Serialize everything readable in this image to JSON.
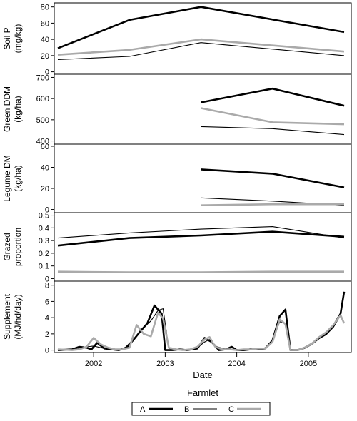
{
  "chart_data": {
    "type": "line",
    "xlabel": "Date",
    "x_ticks": [
      "2002",
      "2003",
      "2004",
      "2005"
    ],
    "x_range": [
      2001.45,
      2005.6
    ],
    "legend": {
      "title": "Farmlet",
      "entries": [
        "A",
        "B",
        "C"
      ],
      "colors": [
        "#000000",
        "#000000",
        "#aaaaaa"
      ],
      "line_widths": [
        "thick",
        "thin",
        "thick"
      ]
    },
    "panels": [
      {
        "ylabel_lines": [
          "Soil P",
          "(mg/kg)"
        ],
        "ylim": [
          -3,
          85
        ],
        "yticks": [
          "0",
          "20",
          "40",
          "60",
          "80"
        ],
        "series": [
          {
            "name": "A",
            "x": [
              2001.5,
              2002.5,
              2003.5,
              2005.5
            ],
            "y": [
              29,
              64,
              80,
              49
            ]
          },
          {
            "name": "B",
            "x": [
              2001.5,
              2002.5,
              2003.5,
              2005.5
            ],
            "y": [
              15,
              19,
              36,
              20
            ]
          },
          {
            "name": "C",
            "x": [
              2001.5,
              2002.5,
              2003.5,
              2005.5
            ],
            "y": [
              21,
              27,
              40,
              25
            ]
          }
        ]
      },
      {
        "ylabel_lines": [
          "Green DDM",
          "(kg/ha)"
        ],
        "ylim": [
          385,
          715
        ],
        "yticks": [
          "400",
          "500",
          "600",
          "700"
        ],
        "series": [
          {
            "name": "A",
            "x": [
              2003.5,
              2004.5,
              2005.5
            ],
            "y": [
              582,
              647,
              566
            ]
          },
          {
            "name": "B",
            "x": [
              2003.5,
              2004.5,
              2005.5
            ],
            "y": [
              468,
              458,
              430
            ]
          },
          {
            "name": "C",
            "x": [
              2003.5,
              2004.5,
              2005.5
            ],
            "y": [
              555,
              488,
              479
            ]
          }
        ]
      },
      {
        "ylabel_lines": [
          "Legume DM",
          "(kg/ha)"
        ],
        "ylim": [
          -3,
          62
        ],
        "yticks": [
          "0",
          "20",
          "40",
          "60"
        ],
        "series": [
          {
            "name": "A",
            "x": [
              2003.5,
              2004.5,
              2005.5
            ],
            "y": [
              38,
              34,
              21
            ]
          },
          {
            "name": "B",
            "x": [
              2003.5,
              2004.5,
              2005.5
            ],
            "y": [
              11,
              8,
              4
            ]
          },
          {
            "name": "C",
            "x": [
              2003.5,
              2004.5,
              2005.5
            ],
            "y": [
              4,
              5,
              5
            ]
          }
        ]
      },
      {
        "ylabel_lines": [
          "Grazed",
          "proportion"
        ],
        "ylim": [
          -0.02,
          0.52
        ],
        "yticks": [
          "0",
          "0.1",
          "0.2",
          "0.3",
          "0.4",
          "0.5"
        ],
        "series": [
          {
            "name": "A",
            "x": [
              2001.5,
              2002.5,
              2003.5,
              2004.5,
              2005.5
            ],
            "y": [
              0.26,
              0.32,
              0.34,
              0.37,
              0.33
            ]
          },
          {
            "name": "B",
            "x": [
              2001.5,
              2002.5,
              2003.5,
              2004.5,
              2005.5
            ],
            "y": [
              0.32,
              0.36,
              0.39,
              0.41,
              0.32
            ]
          },
          {
            "name": "C",
            "x": [
              2001.5,
              2002.5,
              2003.5,
              2004.5,
              2005.5
            ],
            "y": [
              0.055,
              0.05,
              0.05,
              0.055,
              0.055
            ]
          }
        ]
      },
      {
        "ylabel_lines": [
          "Supplement",
          "(MJ/hd/day)"
        ],
        "ylim": [
          -0.3,
          8.5
        ],
        "yticks": [
          "0",
          "2",
          "4",
          "6",
          "8"
        ],
        "series": [
          {
            "name": "A",
            "x": [
              2001.5,
              2001.7,
              2001.8,
              2001.9,
              2001.97,
              2002.05,
              2002.15,
              2002.25,
              2002.35,
              2002.45,
              2002.55,
              2002.65,
              2002.75,
              2002.85,
              2002.95,
              2003.0,
              2003.1,
              2003.2,
              2003.3,
              2003.45,
              2003.55,
              2003.65,
              2003.75,
              2003.85,
              2003.93,
              2004.0,
              2004.1,
              2004.2,
              2004.3,
              2004.4,
              2004.5,
              2004.6,
              2004.68,
              2004.75,
              2004.85,
              2004.95,
              2005.05,
              2005.15,
              2005.25,
              2005.35,
              2005.45,
              2005.5
            ],
            "y": [
              0.0,
              0.1,
              0.4,
              0.3,
              0.1,
              0.9,
              0.2,
              0.1,
              0.0,
              0.3,
              1.2,
              2.3,
              3.3,
              5.5,
              4.5,
              0.0,
              0.0,
              0.1,
              0.0,
              0.2,
              1.5,
              1.0,
              0.0,
              0.1,
              0.4,
              0.0,
              0.0,
              0.1,
              0.1,
              0.2,
              1.2,
              4.2,
              5.0,
              0.0,
              0.0,
              0.3,
              0.8,
              1.5,
              2.0,
              3.0,
              4.5,
              7.2
            ]
          },
          {
            "name": "B",
            "x": [
              2001.5,
              2001.7,
              2001.8,
              2001.9,
              2002.0,
              2002.1,
              2002.2,
              2002.3,
              2002.4,
              2002.5,
              2002.6,
              2002.7,
              2002.8,
              2002.9,
              2002.97,
              2003.05,
              2003.15,
              2003.25,
              2003.35,
              2003.45,
              2003.55,
              2003.62,
              2003.7,
              2003.8,
              2003.9,
              2004.0,
              2004.1,
              2004.2,
              2004.3,
              2004.4,
              2004.5,
              2004.6,
              2004.68,
              2004.75,
              2004.85,
              2004.95,
              2005.05,
              2005.15,
              2005.25,
              2005.35,
              2005.45,
              2005.5
            ],
            "y": [
              0.1,
              0.0,
              0.2,
              0.4,
              0.5,
              0.3,
              0.1,
              0.0,
              0.1,
              0.5,
              1.8,
              2.8,
              3.6,
              4.9,
              5.1,
              0.2,
              0.1,
              0.0,
              0.1,
              0.3,
              1.0,
              1.3,
              0.5,
              0.2,
              0.1,
              0.1,
              0.0,
              0.2,
              0.1,
              0.3,
              1.1,
              3.5,
              3.3,
              0.1,
              0.0,
              0.2,
              0.7,
              1.4,
              1.9,
              2.8,
              4.3,
              3.4
            ]
          },
          {
            "name": "C",
            "x": [
              2001.5,
              2001.7,
              2001.8,
              2001.9,
              2002.0,
              2002.1,
              2002.2,
              2002.3,
              2002.4,
              2002.5,
              2002.6,
              2002.7,
              2002.8,
              2002.9,
              2002.97,
              2003.05,
              2003.15,
              2003.25,
              2003.35,
              2003.45,
              2003.55,
              2003.62,
              2003.7,
              2003.8,
              2003.9,
              2004.0,
              2004.1,
              2004.2,
              2004.3,
              2004.4,
              2004.5,
              2004.6,
              2004.68,
              2004.75,
              2004.85,
              2004.95,
              2005.05,
              2005.15,
              2005.25,
              2005.35,
              2005.45,
              2005.5
            ],
            "y": [
              0.1,
              0.0,
              0.1,
              0.4,
              1.5,
              0.7,
              0.3,
              0.1,
              0.1,
              0.3,
              3.1,
              2.0,
              1.7,
              4.6,
              3.9,
              0.3,
              0.1,
              0.0,
              0.1,
              0.4,
              1.3,
              1.6,
              0.4,
              0.1,
              0.1,
              0.0,
              0.1,
              0.1,
              0.2,
              0.2,
              1.0,
              3.8,
              3.2,
              0.0,
              0.0,
              0.3,
              0.8,
              1.6,
              2.2,
              3.1,
              4.3,
              3.3
            ]
          }
        ]
      }
    ]
  }
}
